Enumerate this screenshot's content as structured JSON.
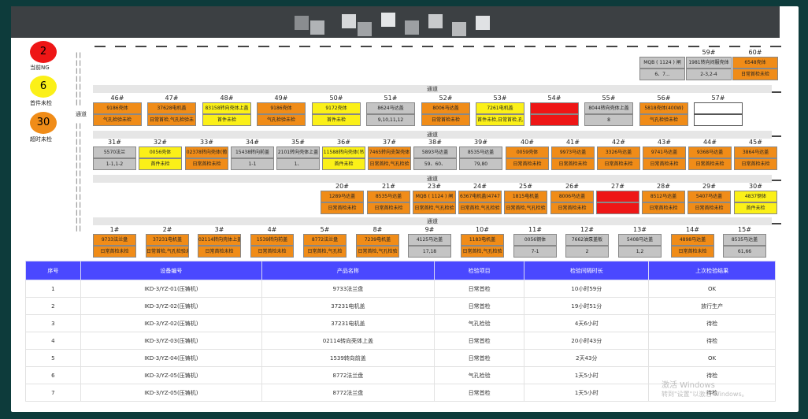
{
  "legend": [
    {
      "value": "2",
      "label": "当前NG",
      "color": "#ee1616"
    },
    {
      "value": "6",
      "label": "首件未检",
      "color": "#fbf018"
    },
    {
      "value": "30",
      "label": "超时未检",
      "color": "#f08c18"
    }
  ],
  "channel_label": "通道",
  "channel_side_label": "通道",
  "rows": [
    {
      "cells": [
        {
          "num": "",
          "name": "",
          "status": "",
          "color": ""
        },
        {
          "num": "",
          "name": "",
          "status": "",
          "color": ""
        },
        {
          "num": "",
          "name": "",
          "status": "",
          "color": ""
        },
        {
          "num": "",
          "name": "",
          "status": "",
          "color": ""
        },
        {
          "num": "",
          "name": "",
          "status": "",
          "color": ""
        },
        {
          "num": "",
          "name": "",
          "status": "",
          "color": ""
        },
        {
          "num": "",
          "name": "",
          "status": "",
          "color": ""
        },
        {
          "num": "",
          "name": "",
          "status": "",
          "color": ""
        },
        {
          "num": "",
          "name": "",
          "status": "",
          "color": ""
        },
        {
          "num": "",
          "name": "",
          "status": "",
          "color": ""
        },
        {
          "num": "",
          "name": "",
          "status": "",
          "color": ""
        },
        {
          "num": "",
          "name": "",
          "status": "",
          "color": ""
        },
        {
          "num": "",
          "name": "MQB ( 1124 ) 闸",
          "status": "6、7...",
          "color": "gray"
        },
        {
          "num": "59#",
          "name": "1981转向间服壳体",
          "status": "2-3,2-4",
          "color": "gray"
        },
        {
          "num": "60#",
          "name": "6548壳体",
          "status": "日常首检未检",
          "color": "orange"
        }
      ]
    },
    {
      "cells": [
        {
          "num": "46#",
          "name": "9186壳体",
          "status": "气孔检验未检",
          "color": "orange"
        },
        {
          "num": "47#",
          "name": "37628电机盖",
          "status": "日常首检,气孔检验未",
          "color": "orange"
        },
        {
          "num": "48#",
          "name": "83158转向壳体上盖",
          "status": "首件未检",
          "color": "yellow"
        },
        {
          "num": "49#",
          "name": "9186壳体",
          "status": "气孔检验未检",
          "color": "orange"
        },
        {
          "num": "50#",
          "name": "9172壳体",
          "status": "首件未检",
          "color": "yellow"
        },
        {
          "num": "51#",
          "name": "8624马达盖",
          "status": "9,10,11,12",
          "color": "gray"
        },
        {
          "num": "52#",
          "name": "8006马达盖",
          "status": "日常首检未检",
          "color": "orange"
        },
        {
          "num": "53#",
          "name": "7261电机盖",
          "status": "首件未检,日常首检,孔",
          "color": "yellow"
        },
        {
          "num": "54#",
          "name": "",
          "status": "",
          "color": "red"
        },
        {
          "num": "55#",
          "name": "8044转向壳体上盖",
          "status": "8",
          "color": "gray"
        },
        {
          "num": "56#",
          "name": "5818壳体(400W)",
          "status": "气孔检验未检",
          "color": "orange"
        },
        {
          "num": "57#",
          "name": "",
          "status": "",
          "color": "white"
        }
      ]
    },
    {
      "cells": [
        {
          "num": "31#",
          "name": "5570法兰",
          "status": "1-1,1-2",
          "color": "gray"
        },
        {
          "num": "32#",
          "name": "0056壳体",
          "status": "首件未检",
          "color": "yellow"
        },
        {
          "num": "33#",
          "name": "02378转向壳体(葡",
          "status": "日常首检未检",
          "color": "orange"
        },
        {
          "num": "34#",
          "name": "15438转向前盖",
          "status": "1-1",
          "color": "gray"
        },
        {
          "num": "35#",
          "name": "2101转向壳体上盖",
          "status": "1、",
          "color": "gray"
        },
        {
          "num": "36#",
          "name": "11588转向壳体(吊",
          "status": "首件未检",
          "color": "yellow"
        },
        {
          "num": "37#",
          "name": "7465转向支架壳体",
          "status": "日常首检,气孔检验",
          "color": "orange"
        },
        {
          "num": "38#",
          "name": "5893马达盖",
          "status": "59、60、",
          "color": "gray"
        },
        {
          "num": "39#",
          "name": "8535马达盖",
          "status": "79,80",
          "color": "gray"
        },
        {
          "num": "40#",
          "name": "0059壳体",
          "status": "日常首检未检",
          "color": "orange"
        },
        {
          "num": "41#",
          "name": "9973马达盖",
          "status": "日常首检未检",
          "color": "orange"
        },
        {
          "num": "42#",
          "name": "3326马达盖",
          "status": "日常首检未检",
          "color": "orange"
        },
        {
          "num": "43#",
          "name": "9741马达盖",
          "status": "日常首检未检",
          "color": "orange"
        },
        {
          "num": "44#",
          "name": "9368马达盖",
          "status": "日常首检未检",
          "color": "orange"
        },
        {
          "num": "45#",
          "name": "3864马达盖",
          "status": "日常首检未检",
          "color": "orange"
        }
      ]
    },
    {
      "cells": [
        {
          "num": "20#",
          "name": "1289马达盖",
          "status": "日常首检未检",
          "color": "orange"
        },
        {
          "num": "21#",
          "name": "8535马达盖",
          "status": "日常首检未检",
          "color": "orange"
        },
        {
          "num": "23#",
          "name": "MQB ( 1124 ) 闸",
          "status": "日常首检,气孔检验",
          "color": "orange"
        },
        {
          "num": "24#",
          "name": "6367电机盖(4747",
          "status": "日常首检,气孔检验",
          "color": "orange"
        },
        {
          "num": "25#",
          "name": "1815电机盖",
          "status": "日常首检,气孔检验",
          "color": "orange"
        },
        {
          "num": "26#",
          "name": "8006马达盖",
          "status": "日常首检未检",
          "color": "orange"
        },
        {
          "num": "27#",
          "name": "",
          "status": "",
          "color": "red"
        },
        {
          "num": "28#",
          "name": "8512马达盖",
          "status": "日常首检未检",
          "color": "orange"
        },
        {
          "num": "29#",
          "name": "5407马达盖",
          "status": "日常首检未检",
          "color": "orange"
        },
        {
          "num": "30#",
          "name": "4837钢体",
          "status": "首件未检",
          "color": "yellow"
        }
      ]
    },
    {
      "cells": [
        {
          "num": "1#",
          "name": "9733法兰盘",
          "status": "日常首检未检",
          "color": "orange"
        },
        {
          "num": "2#",
          "name": "37231电机盖",
          "status": "日常首检,气孔检验未",
          "color": "orange"
        },
        {
          "num": "3#",
          "name": "02114转向壳体上盖",
          "status": "日常首检未检",
          "color": "orange"
        },
        {
          "num": "4#",
          "name": "1539转向前盖",
          "status": "日常首检未检",
          "color": "orange"
        },
        {
          "num": "5#",
          "name": "8772法兰盘",
          "status": "日常首检,气孔检",
          "color": "orange"
        },
        {
          "num": "8#",
          "name": "7239电机盖",
          "status": "日常首检,气孔检验",
          "color": "orange"
        },
        {
          "num": "9#",
          "name": "4125马达盖",
          "status": "17,18",
          "color": "gray"
        },
        {
          "num": "10#",
          "name": "1183电机盖",
          "status": "日常首检,气孔检验",
          "color": "orange"
        },
        {
          "num": "11#",
          "name": "0056钢体",
          "status": "7-1",
          "color": "gray"
        },
        {
          "num": "12#",
          "name": "7662油泵盖板",
          "status": "2",
          "color": "gray"
        },
        {
          "num": "13#",
          "name": "5408马达盖",
          "status": "1,2",
          "color": "gray"
        },
        {
          "num": "14#",
          "name": "4898马达盖",
          "status": "日常首检未检",
          "color": "orange"
        },
        {
          "num": "15#",
          "name": "8535马达盖",
          "status": "61,66",
          "color": "gray"
        }
      ]
    }
  ],
  "table": {
    "headers": [
      "序号",
      "设备编号",
      "产品名称",
      "检验项目",
      "检验间隔时长",
      "上次检验结果"
    ],
    "rows": [
      [
        "1",
        "IKD-3/YZ-01(压铸机)",
        "9733法兰盘",
        "日常首检",
        "10小时59分",
        "OK"
      ],
      [
        "2",
        "IKD-3/YZ-02(压铸机)",
        "37231电机盖",
        "日常首检",
        "19小时51分",
        "放行生产"
      ],
      [
        "3",
        "IKD-3/YZ-02(压铸机)",
        "37231电机盖",
        "气孔检验",
        "4天6小时",
        "待检"
      ],
      [
        "4",
        "IKD-3/YZ-03(压铸机)",
        "02114转向壳体上盖",
        "日常首检",
        "20小时43分",
        "待检"
      ],
      [
        "5",
        "IKD-3/YZ-04(压铸机)",
        "1539转向前盖",
        "日常首检",
        "2天43分",
        "OK"
      ],
      [
        "6",
        "IKD-3/YZ-05(压铸机)",
        "8772法兰盘",
        "气孔检验",
        "1天5小时",
        "待检"
      ],
      [
        "7",
        "IKD-3/YZ-05(压铸机)",
        "8772法兰盘",
        "日常首检",
        "1天5小时",
        "待检"
      ]
    ]
  },
  "watermark": {
    "line1": "激活 Windows",
    "line2": "转到\"设置\"以激活 Windows。"
  }
}
